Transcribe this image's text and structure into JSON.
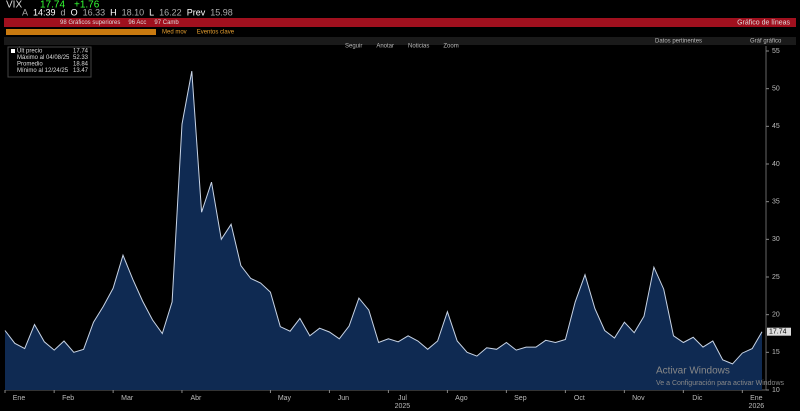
{
  "header": {
    "ticker": "VIX",
    "last": "17.74",
    "change": "+1.76",
    "quote": [
      "A",
      "14:39",
      "d",
      "O",
      "16.33",
      "H",
      "18.10",
      "L",
      "16.22",
      "Prev",
      "15.98"
    ]
  },
  "menu": {
    "items": [
      "98 Gráficos superiores",
      "96 Acc",
      "97 Camb"
    ],
    "right": "Gráfico de líneas"
  },
  "options": [
    "Med mov",
    "Eventos clave"
  ],
  "toolbar": {
    "items": [
      "Seguir",
      "Anotar",
      "Noticias",
      "Zoom"
    ],
    "right": [
      "Datos pertinentes",
      "Gráf gráfico"
    ]
  },
  "watermark": {
    "title": "Activar Windows",
    "text": "Ve a Configuración para activar Windows"
  },
  "chart_data": {
    "type": "area",
    "legend": [
      {
        "label": "Últ precio",
        "value": "17.74"
      },
      {
        "label": "Máximo al 04/08/25",
        "value": "52.33"
      },
      {
        "label": "Promedio",
        "value": "18.84"
      },
      {
        "label": "Mínimo al 12/24/25",
        "value": "13.47"
      }
    ],
    "categories": [
      "Ene",
      null,
      null,
      null,
      null,
      "Feb",
      null,
      null,
      null,
      null,
      null,
      "Mar",
      null,
      null,
      null,
      null,
      null,
      null,
      "Abr",
      null,
      null,
      null,
      null,
      null,
      null,
      null,
      null,
      "May",
      null,
      null,
      null,
      null,
      null,
      "Jun",
      null,
      null,
      null,
      null,
      null,
      "Jul",
      null,
      null,
      null,
      null,
      null,
      "Ago",
      null,
      null,
      null,
      null,
      null,
      "Sep",
      null,
      null,
      null,
      null,
      null,
      "Oct",
      null,
      null,
      null,
      null,
      null,
      "Nov",
      null,
      null,
      null,
      null,
      null,
      "Dic",
      null,
      null,
      null,
      null,
      null,
      "Ene",
      null,
      null
    ],
    "x_year_labels": [
      "2025",
      "2026"
    ],
    "series": [
      {
        "name": "VIX",
        "color": "#c8d4e6",
        "fill": "#0f2a52",
        "values": [
          17.9,
          16.2,
          15.5,
          18.7,
          16.4,
          15.3,
          16.5,
          15.0,
          15.4,
          19.0,
          21.1,
          23.5,
          27.9,
          24.7,
          21.8,
          19.3,
          17.5,
          21.7,
          45.3,
          52.33,
          33.6,
          37.6,
          30.0,
          32.0,
          26.5,
          24.8,
          24.2,
          23.0,
          18.4,
          17.8,
          19.5,
          17.2,
          18.2,
          17.7,
          16.8,
          18.5,
          22.2,
          20.6,
          16.3,
          16.8,
          16.4,
          17.2,
          16.5,
          15.4,
          16.5,
          20.4,
          16.5,
          15.0,
          14.5,
          15.6,
          15.4,
          16.3,
          15.3,
          15.7,
          15.7,
          16.6,
          16.3,
          16.7,
          21.7,
          25.3,
          20.8,
          17.9,
          16.9,
          19.0,
          17.6,
          19.8,
          26.3,
          23.4,
          17.2,
          16.3,
          17.0,
          15.7,
          16.5,
          14.0,
          13.47,
          14.9,
          15.5,
          17.74
        ]
      }
    ],
    "last_label": "17.74",
    "ylim": [
      10,
      55
    ],
    "yticks": [
      10,
      15,
      20,
      25,
      30,
      35,
      40,
      45,
      50,
      55
    ]
  }
}
